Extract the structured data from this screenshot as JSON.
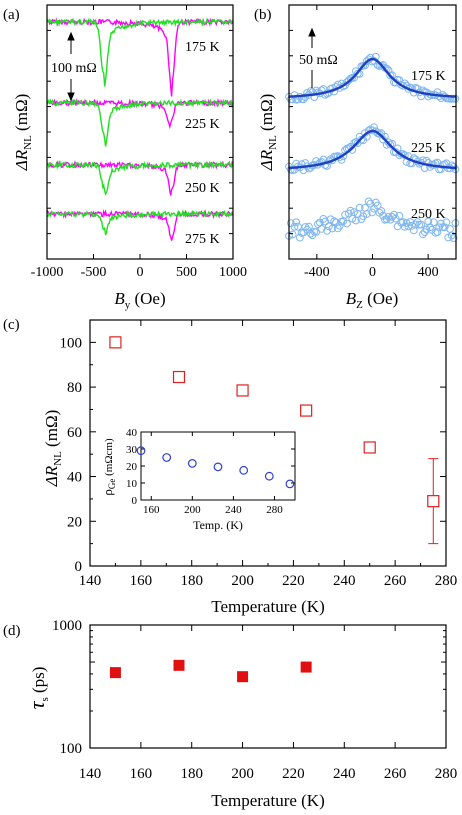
{
  "chart_data": [
    {
      "panel": "(a)",
      "type": "line",
      "xlabel": "B",
      "xlabel_sub": "y",
      "xlabel_unit": " (Oe)",
      "ylabel": "ΔR",
      "ylabel_sub": "NL",
      "ylabel_unit": " (mΩ)",
      "xlim": [
        -1000,
        1000
      ],
      "xticks": [
        "-1000",
        "-500",
        "0",
        "500",
        "1000"
      ],
      "scale_bar": "100 mΩ",
      "series_colors": [
        "#ff00ff",
        "#22dd22"
      ],
      "traces": [
        {
          "label": "175 K",
          "offset": 0
        },
        {
          "label": "225 K",
          "offset": 1
        },
        {
          "label": "250 K",
          "offset": 2
        },
        {
          "label": "275 K",
          "offset": 3
        }
      ]
    },
    {
      "panel": "(b)",
      "type": "scatter",
      "xlabel": "B",
      "xlabel_sub": "Z",
      "xlabel_unit": " (Oe)",
      "ylabel": "ΔR",
      "ylabel_sub": "NL",
      "ylabel_unit": " (mΩ)",
      "xlim": [
        -600,
        600
      ],
      "xticks": [
        "-400",
        "0",
        "400"
      ],
      "scale_bar": "50 mΩ",
      "marker_color": "#7fb6f0",
      "fit_color": "#1f3fbf",
      "traces": [
        {
          "label": "175 K",
          "fit": true
        },
        {
          "label": "225 K",
          "fit": true
        },
        {
          "label": "250 K",
          "fit": false
        }
      ]
    },
    {
      "panel": "(c)",
      "type": "scatter",
      "xlabel": "Temperature (K)",
      "ylabel": "ΔR",
      "ylabel_sub": "NL",
      "ylabel_unit": " (mΩ)",
      "xlim": [
        140,
        280
      ],
      "ylim": [
        0,
        110
      ],
      "xticks": [
        140,
        160,
        180,
        200,
        220,
        240,
        260,
        280
      ],
      "yticks": [
        0,
        20,
        40,
        60,
        80,
        100
      ],
      "marker_color": "#e02020",
      "x": [
        150,
        175,
        200,
        225,
        250,
        275
      ],
      "y": [
        100,
        84.5,
        78.5,
        69.5,
        53,
        29
      ],
      "error": [
        null,
        null,
        null,
        null,
        null,
        19
      ],
      "inset": {
        "type": "scatter",
        "xlabel": "Temp. (K)",
        "ylabel": "ρ",
        "ylabel_sub": "Ge",
        "ylabel_unit": " (mΩcm)",
        "xlim": [
          150,
          300
        ],
        "ylim": [
          0,
          40
        ],
        "xticks": [
          160,
          200,
          240,
          280
        ],
        "yticks": [
          0,
          10,
          20,
          30,
          40
        ],
        "marker_color": "#2a3fd0",
        "x": [
          150,
          175,
          200,
          225,
          250,
          275,
          295
        ],
        "y": [
          29,
          25,
          21.5,
          19.5,
          17.5,
          14,
          9.5
        ]
      }
    },
    {
      "panel": "(d)",
      "type": "scatter",
      "xlabel": "Temperature (K)",
      "ylabel": "τ",
      "ylabel_sub": "s",
      "ylabel_unit": " (ps)",
      "yscale": "log",
      "xlim": [
        140,
        280
      ],
      "ylim": [
        100,
        1000
      ],
      "xticks": [
        140,
        160,
        180,
        200,
        220,
        240,
        260,
        280
      ],
      "yticks": [
        "100",
        "1000"
      ],
      "marker_color": "#e01010",
      "x": [
        150,
        175,
        200,
        225
      ],
      "y": [
        410,
        470,
        380,
        455
      ]
    }
  ]
}
